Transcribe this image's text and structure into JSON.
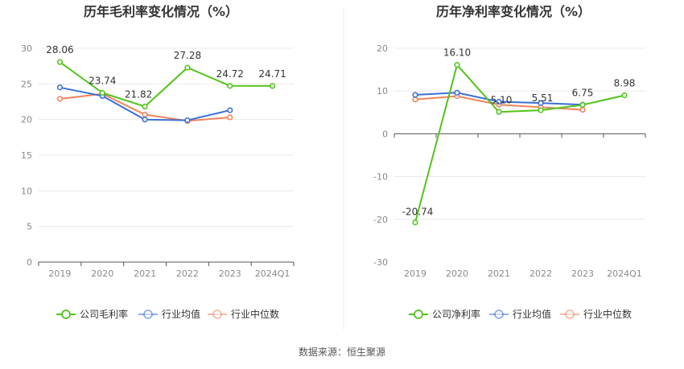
{
  "source_text": "数据来源：恒生聚源",
  "chart_data": [
    {
      "type": "line",
      "title": "历年毛利率变化情况（%）",
      "categories": [
        "2019",
        "2020",
        "2021",
        "2022",
        "2023",
        "2024Q1"
      ],
      "ylim": [
        0,
        30
      ],
      "yticks": [
        0,
        5,
        10,
        15,
        20,
        25,
        30
      ],
      "grid": true,
      "legend_position": "bottom",
      "series": [
        {
          "name": "公司毛利率",
          "color": "#52c41a",
          "labeled": true,
          "values": [
            28.06,
            23.74,
            21.82,
            27.28,
            24.72,
            24.71
          ],
          "labels": [
            "28.06",
            "23.74",
            "21.82",
            "27.28",
            "24.72",
            "24.71"
          ]
        },
        {
          "name": "行业均值",
          "color": "#3a6fd8",
          "labeled": false,
          "values": [
            24.5,
            23.3,
            20.0,
            19.9,
            21.3,
            null
          ]
        },
        {
          "name": "行业中位数",
          "color": "#f0845b",
          "labeled": false,
          "values": [
            22.9,
            23.6,
            20.7,
            19.8,
            20.3,
            null
          ]
        }
      ]
    },
    {
      "type": "line",
      "title": "历年净利率变化情况（%）",
      "categories": [
        "2019",
        "2020",
        "2021",
        "2022",
        "2023",
        "2024Q1"
      ],
      "ylim": [
        -30,
        20
      ],
      "yticks": [
        -30,
        -20,
        -10,
        0,
        10,
        20
      ],
      "grid": true,
      "legend_position": "bottom",
      "series": [
        {
          "name": "公司净利率",
          "color": "#52c41a",
          "labeled": true,
          "values": [
            -20.74,
            16.1,
            5.1,
            5.51,
            6.75,
            8.98
          ],
          "labels": [
            "-20.74",
            "16.10",
            "5.10",
            "5.51",
            "6.75",
            "8.98"
          ]
        },
        {
          "name": "行业均值",
          "color": "#3a6fd8",
          "labeled": false,
          "values": [
            9.1,
            9.6,
            7.5,
            7.2,
            6.8,
            null
          ]
        },
        {
          "name": "行业中位数",
          "color": "#f0845b",
          "labeled": false,
          "values": [
            8.0,
            8.8,
            6.8,
            6.2,
            5.6,
            null
          ]
        }
      ]
    }
  ]
}
